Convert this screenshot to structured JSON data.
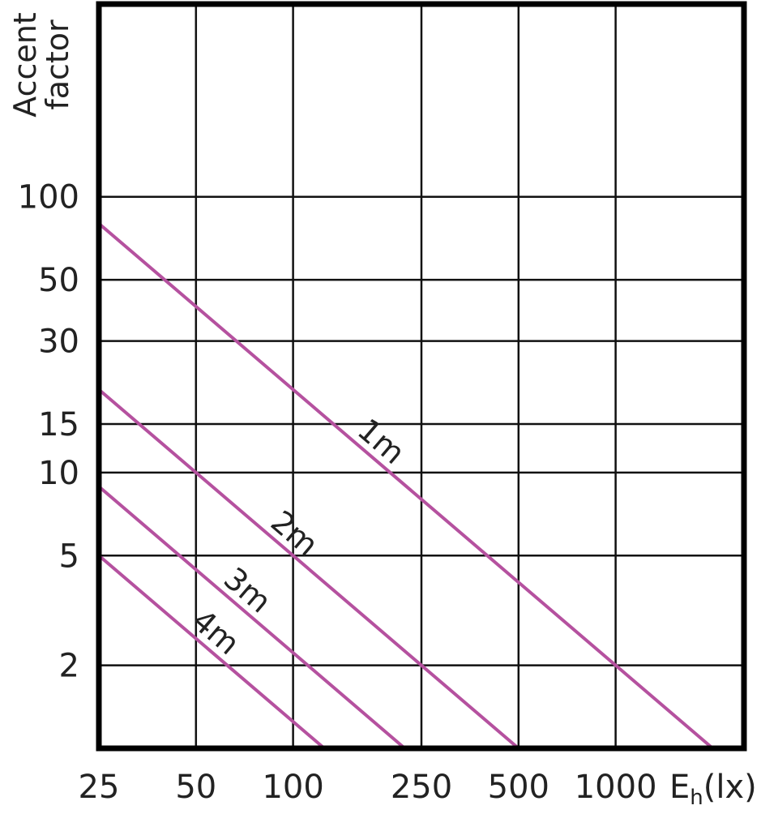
{
  "chart_data": {
    "type": "line",
    "ylabel": [
      "Accent",
      "factor"
    ],
    "xlabel": {
      "symbol": "E",
      "subscript": "h",
      "unit": "(lx)"
    },
    "xscale": "log",
    "yscale": "log",
    "grid": true,
    "xlim": [
      25,
      2500
    ],
    "ylim": [
      1,
      500
    ],
    "xticks": [
      25,
      50,
      100,
      250,
      500,
      1000
    ],
    "yticks": [
      2,
      5,
      10,
      15,
      30,
      50,
      100
    ],
    "series": [
      {
        "name": "1m",
        "color": "#b5519f",
        "x": [
          25,
          2000
        ],
        "values": [
          80,
          1
        ]
      },
      {
        "name": "2m",
        "color": "#b5519f",
        "x": [
          25,
          500
        ],
        "values": [
          20,
          1
        ]
      },
      {
        "name": "3m",
        "color": "#b5519f",
        "x": [
          25,
          222
        ],
        "values": [
          8.9,
          1
        ]
      },
      {
        "name": "4m",
        "color": "#b5519f",
        "x": [
          25,
          125
        ],
        "values": [
          5,
          1
        ]
      }
    ]
  }
}
